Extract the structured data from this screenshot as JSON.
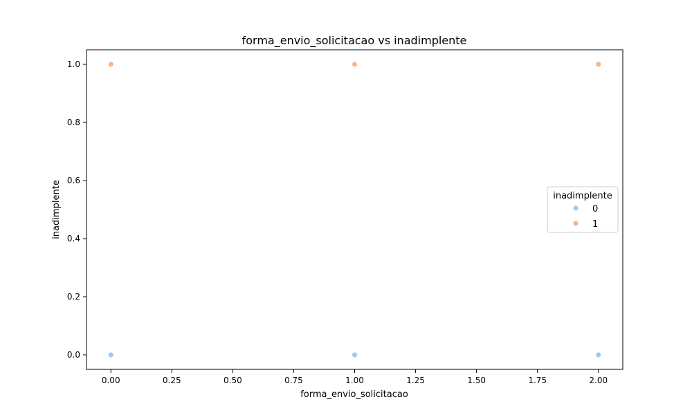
{
  "chart_data": {
    "type": "scatter",
    "title": "forma_envio_solicitacao vs inadimplente",
    "xlabel": "forma_envio_solicitacao",
    "ylabel": "inadimplente",
    "xlim": [
      -0.1,
      2.1
    ],
    "ylim": [
      -0.05,
      1.05
    ],
    "xticks": [
      0.0,
      0.25,
      0.5,
      0.75,
      1.0,
      1.25,
      1.5,
      1.75,
      2.0
    ],
    "xtick_labels": [
      "0.00",
      "0.25",
      "0.50",
      "0.75",
      "1.00",
      "1.25",
      "1.50",
      "1.75",
      "2.00"
    ],
    "yticks": [
      0.0,
      0.2,
      0.4,
      0.6,
      0.8,
      1.0
    ],
    "ytick_labels": [
      "0.0",
      "0.2",
      "0.4",
      "0.6",
      "0.8",
      "1.0"
    ],
    "grid": false,
    "legend": {
      "title": "inadimplente",
      "placement": "center-right"
    },
    "series": [
      {
        "name": "0",
        "color": "#a1c9f4",
        "points": [
          {
            "x": 0,
            "y": 0
          },
          {
            "x": 1,
            "y": 0
          },
          {
            "x": 2,
            "y": 0
          }
        ]
      },
      {
        "name": "1",
        "color": "#ffb482",
        "points": [
          {
            "x": 0,
            "y": 1
          },
          {
            "x": 1,
            "y": 1
          },
          {
            "x": 2,
            "y": 1
          }
        ]
      }
    ]
  }
}
